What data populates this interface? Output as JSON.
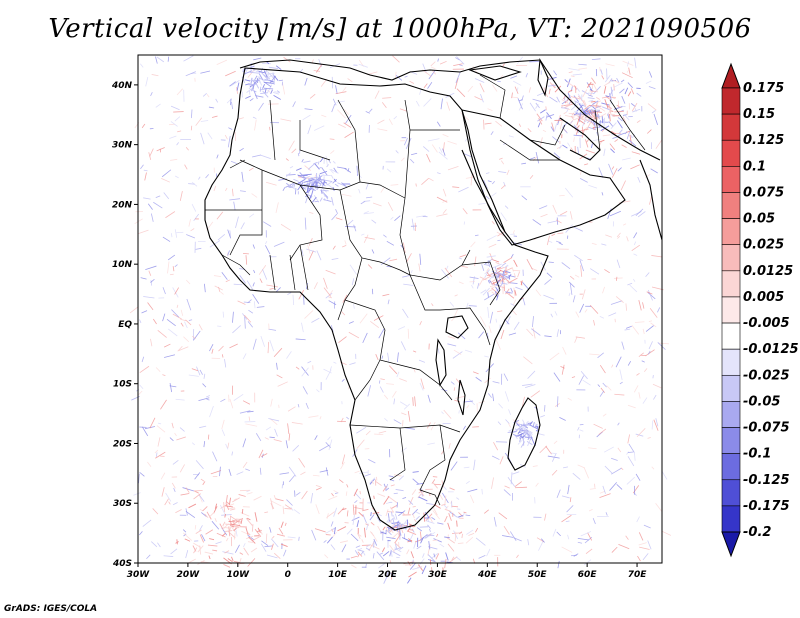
{
  "title": "Vertical velocity [m/s] at 1000hPa, VT: 2021090506",
  "credit": "GrADS: IGES/COLA",
  "map": {
    "lon_range": [
      -30,
      75
    ],
    "lat_range": [
      -40,
      45
    ],
    "lon_ticks": [
      "30W",
      "20W",
      "10W",
      "0",
      "10E",
      "20E",
      "30E",
      "40E",
      "50E",
      "60E",
      "70E"
    ],
    "lat_ticks": [
      "40N",
      "30N",
      "20N",
      "10N",
      "EQ",
      "10S",
      "20S",
      "30S",
      "40S"
    ]
  },
  "colorbar": {
    "levels": [
      {
        "label": "0.175",
        "color": "#c0282d"
      },
      {
        "label": "0.15",
        "color": "#d3383a"
      },
      {
        "label": "0.125",
        "color": "#e34a4c"
      },
      {
        "label": "0.1",
        "color": "#ec6264"
      },
      {
        "label": "0.075",
        "color": "#f0807f"
      },
      {
        "label": "0.05",
        "color": "#f59d9b"
      },
      {
        "label": "0.025",
        "color": "#f8bcbb"
      },
      {
        "label": "0.0125",
        "color": "#fbd6d5"
      },
      {
        "label": "0.005",
        "color": "#fde9e9"
      },
      {
        "label": "-0.005",
        "color": "#ffffff"
      },
      {
        "label": "-0.0125",
        "color": "#e4e4fb"
      },
      {
        "label": "-0.025",
        "color": "#c8c8f6"
      },
      {
        "label": "-0.05",
        "color": "#a9a9f0"
      },
      {
        "label": "-0.075",
        "color": "#8b8be9"
      },
      {
        "label": "-0.1",
        "color": "#6c6ce0"
      },
      {
        "label": "-0.125",
        "color": "#4f4fd6"
      },
      {
        "label": "-0.175",
        "color": "#3535c9"
      },
      {
        "label": "-0.2",
        "color": "#2323b8"
      }
    ],
    "min_color": "#1a1aa8",
    "max_color": "#b01e22"
  }
}
